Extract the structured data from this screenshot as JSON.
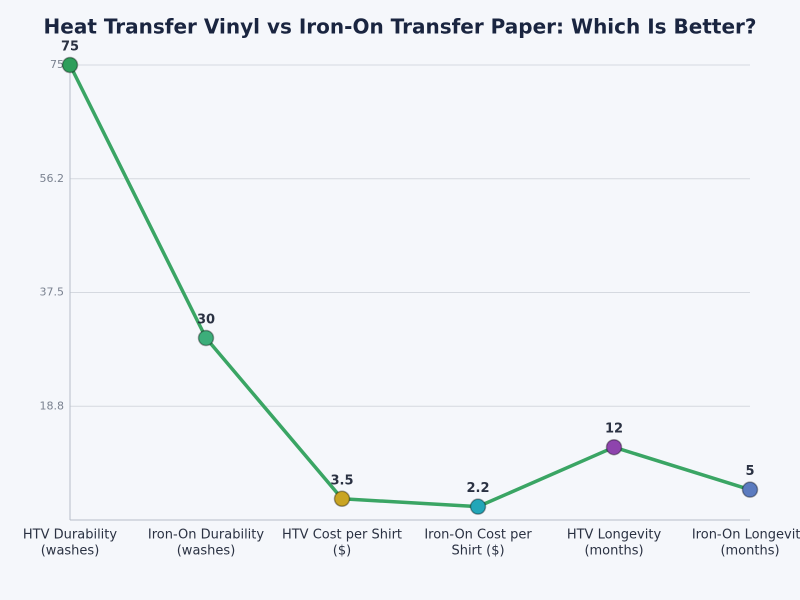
{
  "chart_data": {
    "type": "line",
    "title": "Heat Transfer Vinyl vs Iron-On Transfer Paper: Which Is Better?",
    "categories": [
      [
        "HTV Durability",
        "(washes)"
      ],
      [
        "Iron-On Durability",
        "(washes)"
      ],
      [
        "HTV Cost per Shirt",
        "($)"
      ],
      [
        "Iron-On Cost per",
        "Shirt ($)"
      ],
      [
        "HTV Longevity",
        "(months)"
      ],
      [
        "Iron-On Longevity",
        "(months)"
      ]
    ],
    "values": [
      75,
      30,
      3.5,
      2.2,
      12,
      5
    ],
    "color": "#3aa564",
    "point_colors": [
      "#2e9e5b",
      "#3cae7a",
      "#c9a423",
      "#22a6b8",
      "#8e44ad",
      "#5b7bbf"
    ],
    "ylim": [
      0,
      75
    ],
    "yticks": [
      {
        "value": 18.75,
        "label": "18.8"
      },
      37.5,
      {
        "value": 56.25,
        "label": "56.2"
      },
      75
    ],
    "grid": true
  }
}
